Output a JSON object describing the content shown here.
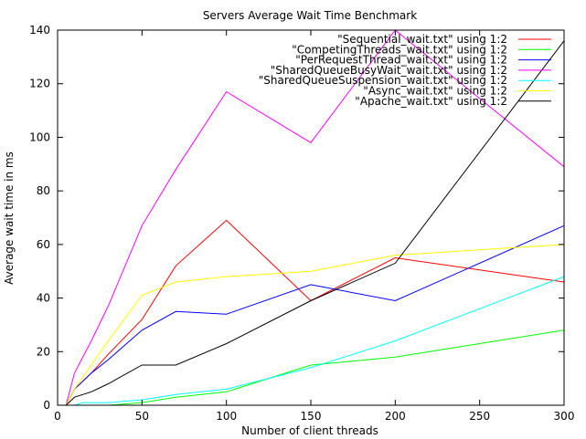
{
  "chart_data": {
    "type": "line",
    "title": "Servers Average Wait Time Benchmark",
    "xlabel": "Number of client threads",
    "ylabel": "Average wait time in ms",
    "xlim": [
      0,
      300
    ],
    "ylim": [
      0,
      140
    ],
    "xticks": [
      0,
      50,
      100,
      150,
      200,
      250,
      300
    ],
    "yticks": [
      0,
      20,
      40,
      60,
      80,
      100,
      120,
      140
    ],
    "grid": false,
    "legend_position": "top-right",
    "series": [
      {
        "name": "\"Sequential_wait.txt\" using 1:2",
        "color": "#ff0000",
        "points": [
          [
            1,
            0
          ],
          [
            5,
            0
          ],
          [
            10,
            6
          ],
          [
            20,
            12
          ],
          [
            30,
            19
          ],
          [
            50,
            32
          ],
          [
            70,
            52
          ],
          [
            100,
            69
          ],
          [
            150,
            39
          ],
          [
            200,
            55
          ],
          [
            300,
            46
          ]
        ]
      },
      {
        "name": "\"CompetingThreads_wait.txt\" using 1:2",
        "color": "#00ff00",
        "points": [
          [
            1,
            0
          ],
          [
            5,
            0
          ],
          [
            10,
            0
          ],
          [
            20,
            0
          ],
          [
            30,
            0
          ],
          [
            50,
            1
          ],
          [
            70,
            3
          ],
          [
            100,
            5
          ],
          [
            150,
            15
          ],
          [
            200,
            18
          ],
          [
            300,
            28
          ]
        ]
      },
      {
        "name": "\"PerRequestThread_wait.txt\" using 1:2",
        "color": "#0000ff",
        "points": [
          [
            1,
            0
          ],
          [
            5,
            0
          ],
          [
            10,
            6
          ],
          [
            20,
            12
          ],
          [
            30,
            17
          ],
          [
            50,
            28
          ],
          [
            70,
            35
          ],
          [
            100,
            34
          ],
          [
            150,
            45
          ],
          [
            200,
            39
          ],
          [
            300,
            67
          ]
        ]
      },
      {
        "name": "\"SharedQueueBusyWait_wait.txt\" using 1:2",
        "color": "#ff00ff",
        "points": [
          [
            1,
            0
          ],
          [
            5,
            0
          ],
          [
            10,
            12
          ],
          [
            20,
            24
          ],
          [
            30,
            37
          ],
          [
            50,
            67
          ],
          [
            70,
            88
          ],
          [
            100,
            117
          ],
          [
            150,
            98
          ],
          [
            200,
            140
          ],
          [
            300,
            89
          ]
        ]
      },
      {
        "name": "\"SharedQueueSuspension_wait.txt\" using 1:2",
        "color": "#00ffff",
        "points": [
          [
            1,
            0
          ],
          [
            5,
            0
          ],
          [
            10,
            0
          ],
          [
            15,
            1
          ],
          [
            30,
            1
          ],
          [
            50,
            2
          ],
          [
            70,
            4
          ],
          [
            100,
            6
          ],
          [
            150,
            14
          ],
          [
            200,
            24
          ],
          [
            300,
            48
          ]
        ]
      },
      {
        "name": "\"Async_wait.txt\" using 1:2",
        "color": "#ffff00",
        "points": [
          [
            1,
            0
          ],
          [
            5,
            0
          ],
          [
            10,
            6
          ],
          [
            20,
            15
          ],
          [
            30,
            24
          ],
          [
            50,
            41
          ],
          [
            70,
            46
          ],
          [
            100,
            48
          ],
          [
            150,
            50
          ],
          [
            200,
            56
          ],
          [
            300,
            60
          ]
        ]
      },
      {
        "name": "\"Apache_wait.txt\" using 1:2",
        "color": "#000000",
        "points": [
          [
            1,
            0
          ],
          [
            5,
            0
          ],
          [
            10,
            3
          ],
          [
            20,
            5
          ],
          [
            30,
            8
          ],
          [
            50,
            15
          ],
          [
            70,
            15
          ],
          [
            100,
            23
          ],
          [
            150,
            39
          ],
          [
            200,
            53
          ],
          [
            300,
            136
          ]
        ]
      }
    ]
  }
}
